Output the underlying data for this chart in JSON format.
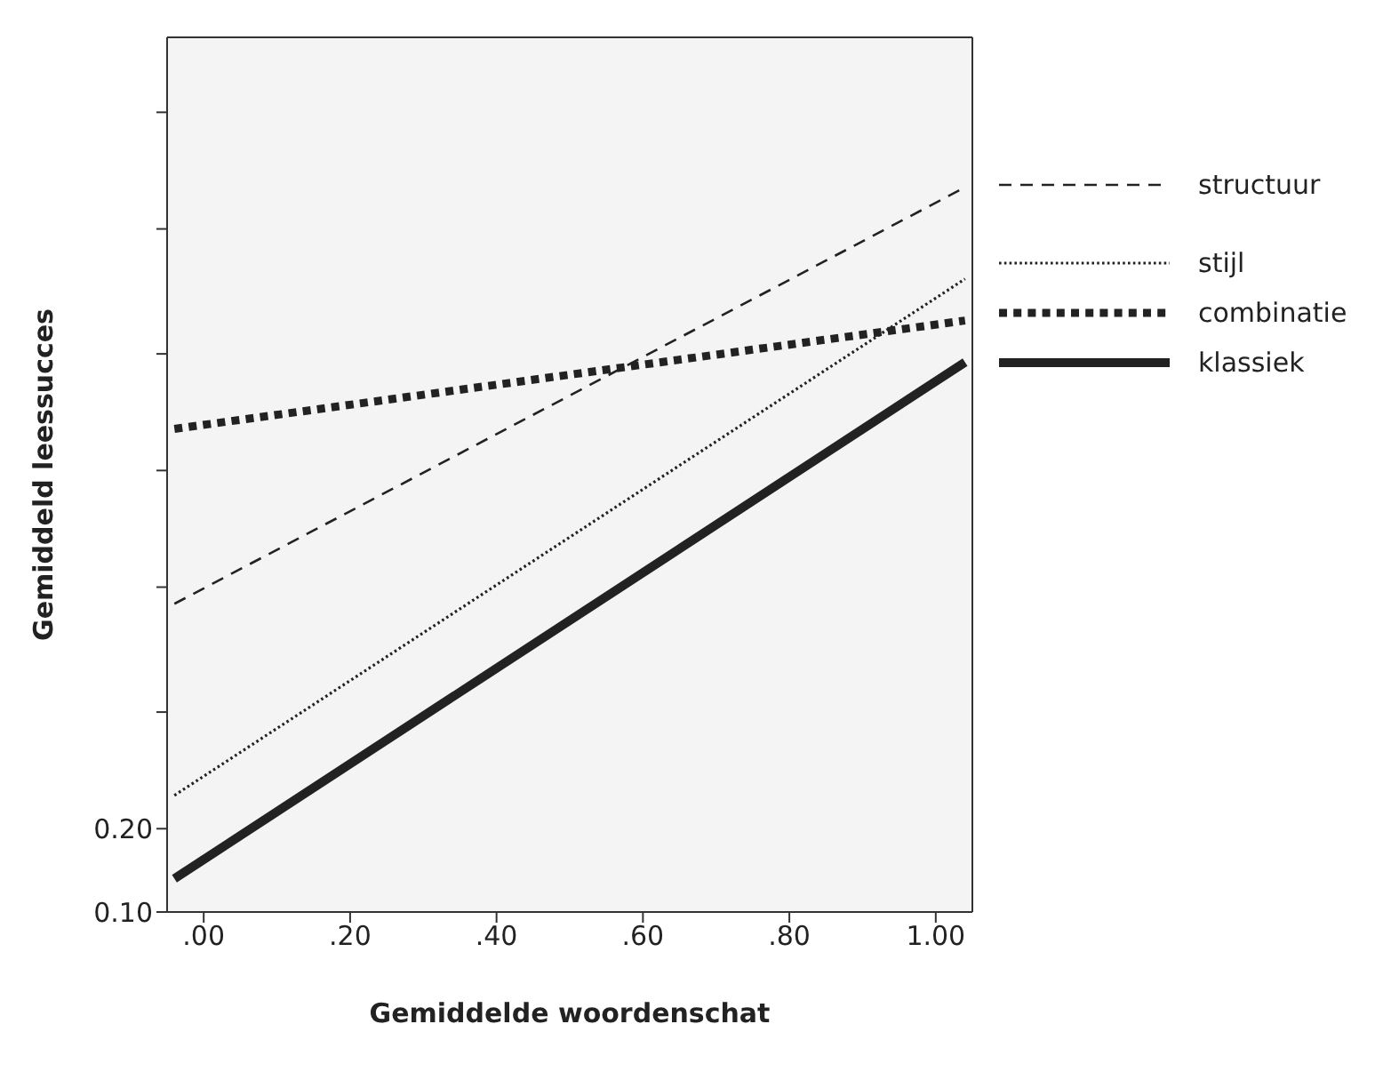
{
  "chart_data": {
    "type": "line",
    "xlabel": "Gemiddelde woordenschat",
    "ylabel": "Gemiddeld leessucces",
    "xlim": [
      -0.05,
      1.05
    ],
    "xticks": [
      {
        "value": 0,
        "label": ".00"
      },
      {
        "value": 0.2,
        "label": ".20"
      },
      {
        "value": 0.4,
        "label": ".40"
      },
      {
        "value": 0.6,
        "label": ".60"
      },
      {
        "value": 0.8,
        "label": ".80"
      },
      {
        "value": 1,
        "label": "1.00"
      }
    ],
    "ylim": [
      0.1,
      1.15
    ],
    "yticks": [
      {
        "value": 0.1,
        "label": "0.10"
      },
      {
        "value": 0.2,
        "label": "0.20"
      },
      {
        "value": 0.34,
        "label": null
      },
      {
        "value": 0.49,
        "label": null
      },
      {
        "value": 0.63,
        "label": null
      },
      {
        "value": 0.77,
        "label": null
      },
      {
        "value": 0.92,
        "label": null
      },
      {
        "value": 1.06,
        "label": null
      }
    ],
    "x": [
      -0.04,
      1.04
    ],
    "legend": "top right",
    "marker": "none",
    "series": [
      {
        "name": "structuur",
        "color": "#222222",
        "line_style": "dashed",
        "values": [
          0.47,
          0.97
        ]
      },
      {
        "name": "stijl",
        "color": "#222222",
        "line_style": "dotted",
        "values": [
          0.24,
          0.86
        ]
      },
      {
        "name": "combinatie",
        "color": "#222222",
        "line_style": "dotted",
        "values": [
          0.68,
          0.81
        ]
      },
      {
        "name": "klassiek",
        "color": "#222222",
        "line_style": "solid",
        "values": [
          0.14,
          0.76
        ]
      }
    ]
  }
}
